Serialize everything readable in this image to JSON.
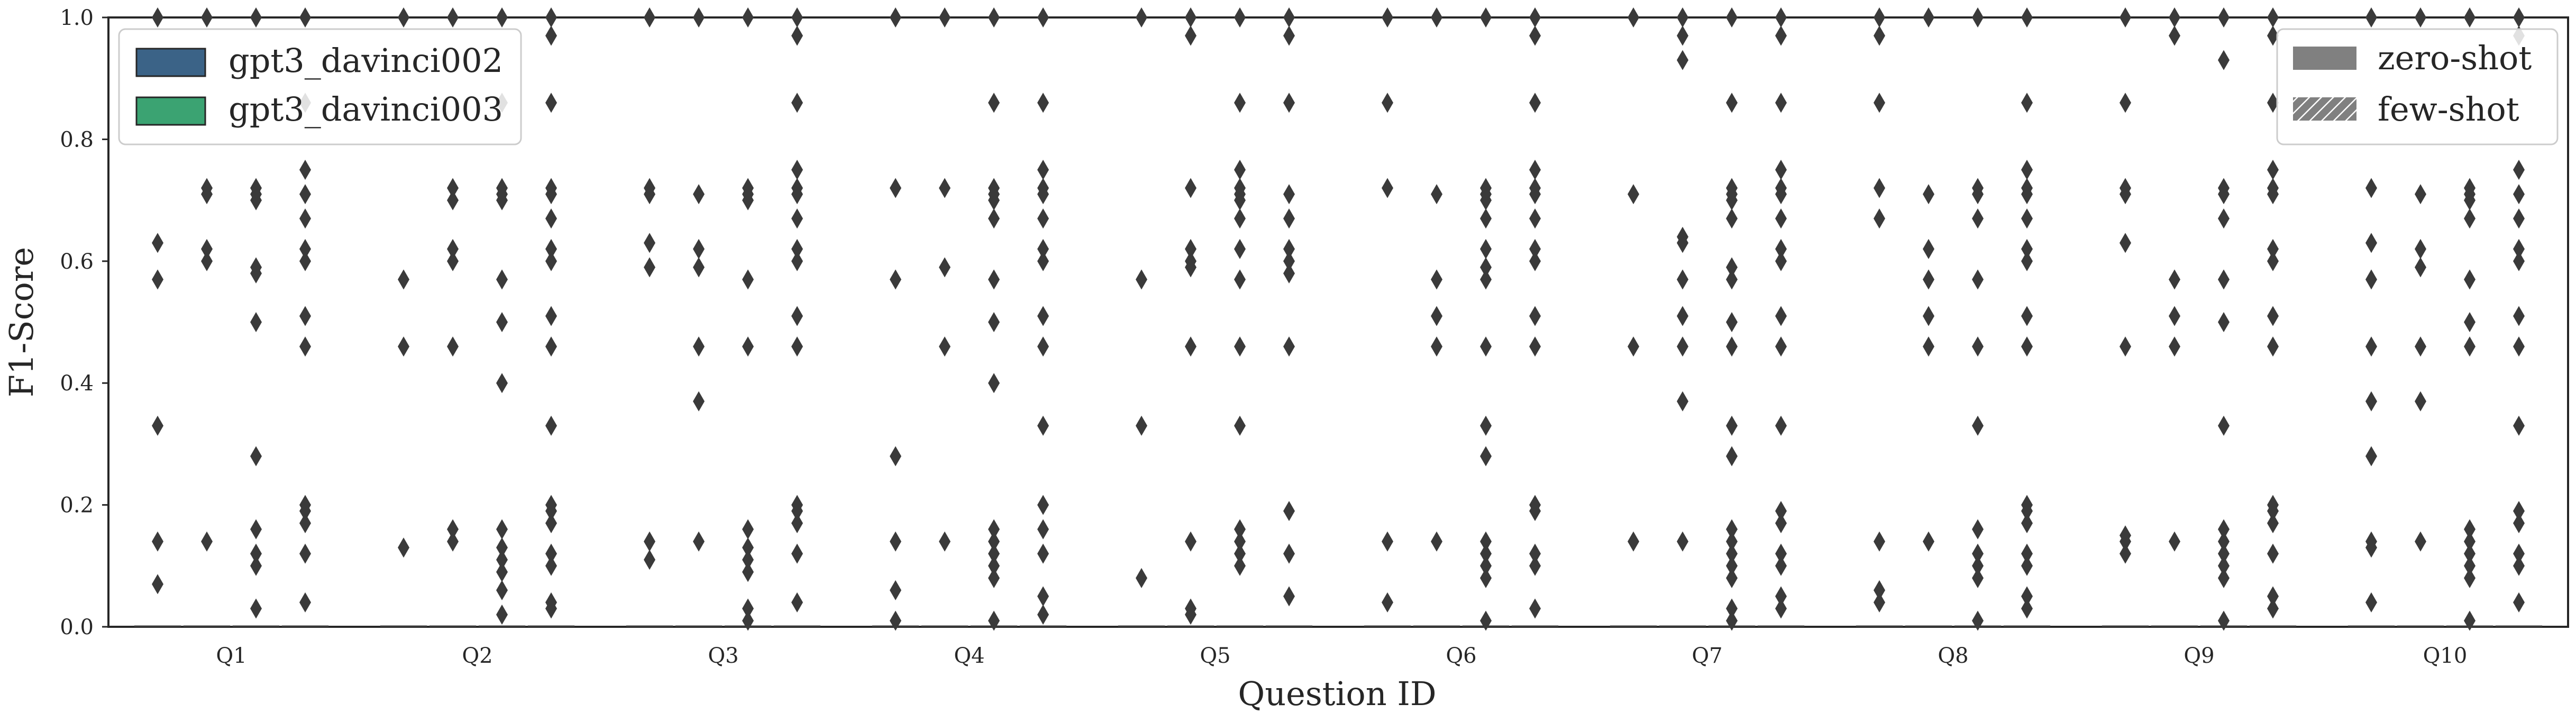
{
  "chart_data": {
    "type": "boxplot",
    "xlabel": "Question ID",
    "ylabel": "F1-Score",
    "ylim": [
      0,
      1
    ],
    "yticks": [
      "0.0",
      "0.2",
      "0.4",
      "0.6",
      "0.8",
      "1.0"
    ],
    "categories": [
      "Q1",
      "Q2",
      "Q3",
      "Q4",
      "Q5",
      "Q6",
      "Q7",
      "Q8",
      "Q9",
      "Q10"
    ],
    "grid": false,
    "models": [
      {
        "name": "gpt3_davinci002",
        "color": "#3b6387"
      },
      {
        "name": "gpt3_davinci003",
        "color": "#3ba372"
      }
    ],
    "settings": [
      {
        "name": "zero-shot",
        "fill": "solid"
      },
      {
        "name": "few-shot",
        "fill": "hatched"
      }
    ],
    "legend_models_position": "upper-left",
    "legend_settings_position": "upper-right",
    "box_median": 0.0,
    "outlier_color": "#3a3a3a",
    "outliers": [
      {
        "question": "Q1",
        "group": 0,
        "values": [
          1.0,
          0.93,
          0.63,
          0.57,
          0.33,
          0.14,
          0.07
        ]
      },
      {
        "question": "Q1",
        "group": 1,
        "values": [
          1.0,
          0.72,
          0.71,
          0.62,
          0.6,
          0.14
        ]
      },
      {
        "question": "Q1",
        "group": 2,
        "values": [
          1.0,
          0.72,
          0.71,
          0.7,
          0.59,
          0.58,
          0.5,
          0.28,
          0.16,
          0.12,
          0.1,
          0.03
        ]
      },
      {
        "question": "Q1",
        "group": 3,
        "values": [
          1.0,
          0.86,
          0.75,
          0.71,
          0.67,
          0.62,
          0.6,
          0.51,
          0.46,
          0.2,
          0.19,
          0.17,
          0.12,
          0.04
        ]
      },
      {
        "question": "Q2",
        "group": 0,
        "values": [
          1.0,
          0.57,
          0.46,
          0.13
        ]
      },
      {
        "question": "Q2",
        "group": 1,
        "values": [
          1.0,
          0.72,
          0.7,
          0.62,
          0.6,
          0.46,
          0.16,
          0.14
        ]
      },
      {
        "question": "Q2",
        "group": 2,
        "values": [
          1.0,
          0.86,
          0.72,
          0.71,
          0.7,
          0.57,
          0.5,
          0.4,
          0.16,
          0.13,
          0.11,
          0.09,
          0.06,
          0.02
        ]
      },
      {
        "question": "Q2",
        "group": 3,
        "values": [
          1.0,
          0.97,
          0.86,
          0.72,
          0.71,
          0.67,
          0.62,
          0.6,
          0.51,
          0.46,
          0.33,
          0.2,
          0.19,
          0.17,
          0.12,
          0.1,
          0.04,
          0.03
        ]
      },
      {
        "question": "Q3",
        "group": 0,
        "values": [
          1.0,
          0.72,
          0.71,
          0.63,
          0.59,
          0.14,
          0.11
        ]
      },
      {
        "question": "Q3",
        "group": 1,
        "values": [
          1.0,
          0.71,
          0.62,
          0.59,
          0.46,
          0.37,
          0.14
        ]
      },
      {
        "question": "Q3",
        "group": 2,
        "values": [
          1.0,
          0.72,
          0.71,
          0.7,
          0.57,
          0.46,
          0.16,
          0.13,
          0.11,
          0.09,
          0.03,
          0.01
        ]
      },
      {
        "question": "Q3",
        "group": 3,
        "values": [
          1.0,
          0.97,
          0.86,
          0.75,
          0.72,
          0.71,
          0.67,
          0.62,
          0.6,
          0.51,
          0.46,
          0.2,
          0.19,
          0.17,
          0.12,
          0.04
        ]
      },
      {
        "question": "Q4",
        "group": 0,
        "values": [
          1.0,
          0.72,
          0.57,
          0.28,
          0.14,
          0.06,
          0.01
        ]
      },
      {
        "question": "Q4",
        "group": 1,
        "values": [
          1.0,
          0.72,
          0.59,
          0.46,
          0.14
        ]
      },
      {
        "question": "Q4",
        "group": 2,
        "values": [
          1.0,
          0.86,
          0.72,
          0.71,
          0.7,
          0.67,
          0.57,
          0.5,
          0.4,
          0.16,
          0.14,
          0.12,
          0.1,
          0.08,
          0.01
        ]
      },
      {
        "question": "Q4",
        "group": 3,
        "values": [
          1.0,
          0.86,
          0.75,
          0.72,
          0.71,
          0.67,
          0.62,
          0.6,
          0.51,
          0.46,
          0.33,
          0.2,
          0.16,
          0.12,
          0.05,
          0.02
        ]
      },
      {
        "question": "Q5",
        "group": 0,
        "values": [
          1.0,
          0.57,
          0.33,
          0.08
        ]
      },
      {
        "question": "Q5",
        "group": 1,
        "values": [
          1.0,
          0.97,
          0.72,
          0.62,
          0.6,
          0.59,
          0.46,
          0.14,
          0.03,
          0.02
        ]
      },
      {
        "question": "Q5",
        "group": 2,
        "values": [
          1.0,
          0.86,
          0.75,
          0.72,
          0.71,
          0.7,
          0.67,
          0.62,
          0.57,
          0.46,
          0.33,
          0.16,
          0.14,
          0.12,
          0.1
        ]
      },
      {
        "question": "Q5",
        "group": 3,
        "values": [
          1.0,
          0.97,
          0.86,
          0.71,
          0.67,
          0.62,
          0.6,
          0.58,
          0.46,
          0.19,
          0.12,
          0.05
        ]
      },
      {
        "question": "Q6",
        "group": 0,
        "values": [
          1.0,
          0.86,
          0.72,
          0.14,
          0.04
        ]
      },
      {
        "question": "Q6",
        "group": 1,
        "values": [
          1.0,
          0.71,
          0.57,
          0.51,
          0.46,
          0.14
        ]
      },
      {
        "question": "Q6",
        "group": 2,
        "values": [
          1.0,
          0.72,
          0.71,
          0.7,
          0.67,
          0.62,
          0.59,
          0.57,
          0.46,
          0.33,
          0.28,
          0.14,
          0.12,
          0.1,
          0.08,
          0.01
        ]
      },
      {
        "question": "Q6",
        "group": 3,
        "values": [
          1.0,
          0.97,
          0.86,
          0.75,
          0.72,
          0.71,
          0.67,
          0.62,
          0.6,
          0.51,
          0.46,
          0.2,
          0.19,
          0.12,
          0.1,
          0.03
        ]
      },
      {
        "question": "Q7",
        "group": 0,
        "values": [
          1.0,
          0.71,
          0.46,
          0.14
        ]
      },
      {
        "question": "Q7",
        "group": 1,
        "values": [
          1.0,
          0.97,
          0.93,
          0.64,
          0.63,
          0.57,
          0.51,
          0.46,
          0.37,
          0.14
        ]
      },
      {
        "question": "Q7",
        "group": 2,
        "values": [
          1.0,
          0.86,
          0.72,
          0.71,
          0.7,
          0.67,
          0.59,
          0.57,
          0.5,
          0.46,
          0.33,
          0.28,
          0.16,
          0.14,
          0.12,
          0.1,
          0.08,
          0.03,
          0.01
        ]
      },
      {
        "question": "Q7",
        "group": 3,
        "values": [
          1.0,
          0.97,
          0.86,
          0.75,
          0.72,
          0.71,
          0.67,
          0.62,
          0.6,
          0.51,
          0.46,
          0.33,
          0.19,
          0.17,
          0.12,
          0.1,
          0.05,
          0.03
        ]
      },
      {
        "question": "Q8",
        "group": 0,
        "values": [
          1.0,
          0.97,
          0.86,
          0.72,
          0.67,
          0.14,
          0.06,
          0.04
        ]
      },
      {
        "question": "Q8",
        "group": 1,
        "values": [
          1.0,
          0.71,
          0.62,
          0.57,
          0.51,
          0.46,
          0.14
        ]
      },
      {
        "question": "Q8",
        "group": 2,
        "values": [
          1.0,
          0.72,
          0.71,
          0.67,
          0.57,
          0.46,
          0.33,
          0.16,
          0.12,
          0.1,
          0.08,
          0.01
        ]
      },
      {
        "question": "Q8",
        "group": 3,
        "values": [
          1.0,
          0.86,
          0.75,
          0.72,
          0.71,
          0.67,
          0.62,
          0.6,
          0.51,
          0.46,
          0.2,
          0.19,
          0.17,
          0.12,
          0.1,
          0.05,
          0.03
        ]
      },
      {
        "question": "Q9",
        "group": 0,
        "values": [
          1.0,
          0.86,
          0.72,
          0.71,
          0.63,
          0.46,
          0.15,
          0.14,
          0.12
        ]
      },
      {
        "question": "Q9",
        "group": 1,
        "values": [
          1.0,
          0.97,
          0.57,
          0.51,
          0.46,
          0.14
        ]
      },
      {
        "question": "Q9",
        "group": 2,
        "values": [
          1.0,
          0.93,
          0.72,
          0.71,
          0.67,
          0.57,
          0.5,
          0.33,
          0.16,
          0.14,
          0.12,
          0.1,
          0.08,
          0.01
        ]
      },
      {
        "question": "Q9",
        "group": 3,
        "values": [
          1.0,
          0.97,
          0.86,
          0.75,
          0.72,
          0.71,
          0.62,
          0.6,
          0.51,
          0.46,
          0.2,
          0.19,
          0.17,
          0.12,
          0.05,
          0.03
        ]
      },
      {
        "question": "Q10",
        "group": 0,
        "values": [
          1.0,
          0.72,
          0.63,
          0.57,
          0.46,
          0.37,
          0.28,
          0.14,
          0.13,
          0.04
        ]
      },
      {
        "question": "Q10",
        "group": 1,
        "values": [
          1.0,
          0.71,
          0.62,
          0.59,
          0.46,
          0.37,
          0.14
        ]
      },
      {
        "question": "Q10",
        "group": 2,
        "values": [
          1.0,
          0.72,
          0.71,
          0.7,
          0.67,
          0.57,
          0.5,
          0.46,
          0.16,
          0.14,
          0.12,
          0.1,
          0.08,
          0.01
        ]
      },
      {
        "question": "Q10",
        "group": 3,
        "values": [
          1.0,
          0.97,
          0.75,
          0.71,
          0.67,
          0.62,
          0.6,
          0.51,
          0.46,
          0.33,
          0.19,
          0.17,
          0.12,
          0.1,
          0.04
        ]
      }
    ]
  }
}
